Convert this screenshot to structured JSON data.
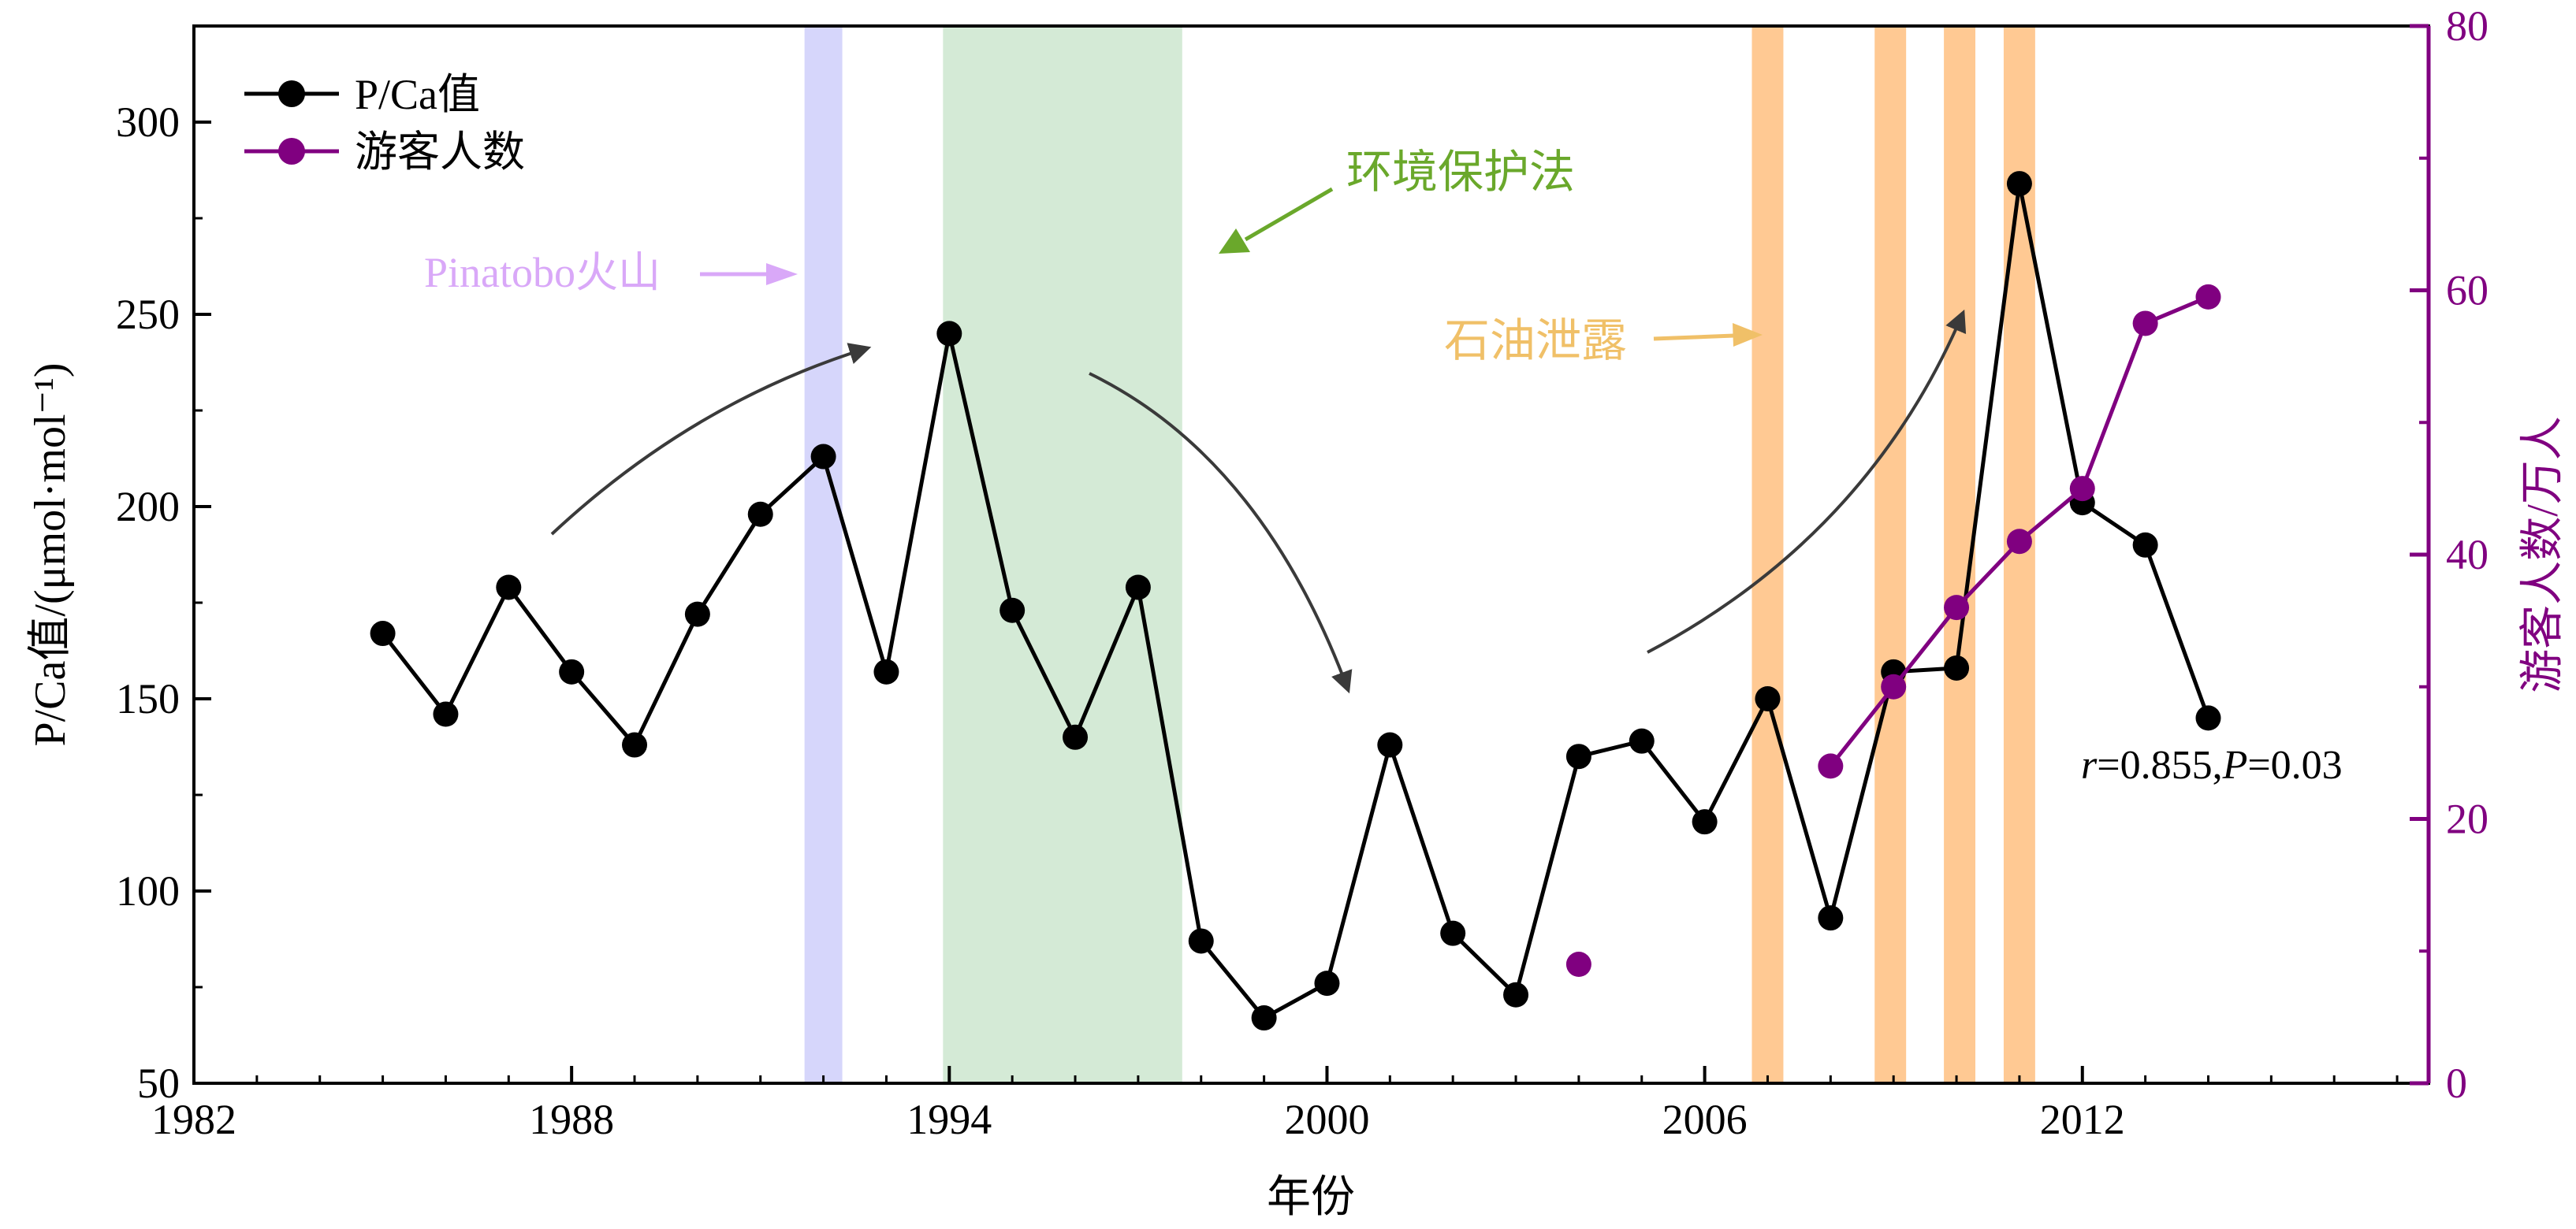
{
  "chart_data": {
    "type": "line",
    "x_axis": {
      "label": "年份",
      "range": [
        1982,
        2017.5
      ],
      "ticks": [
        1982,
        1988,
        1994,
        2000,
        2006,
        2012
      ]
    },
    "y_axis_left": {
      "label": "P/Ca值/(μmol·mol⁻¹)",
      "range": [
        50,
        325
      ],
      "ticks": [
        50,
        100,
        150,
        200,
        250,
        300
      ]
    },
    "y_axis_right": {
      "label": "游客人数/万人",
      "range": [
        0,
        80
      ],
      "ticks": [
        0,
        20,
        40,
        60,
        80
      ],
      "color": "#800080"
    },
    "series": [
      {
        "name": "P/Ca值",
        "axis": "left",
        "color": "#000000",
        "x": [
          1985,
          1986,
          1987,
          1988,
          1989,
          1990,
          1991,
          1992,
          1993,
          1994,
          1995,
          1996,
          1997,
          1998,
          1999,
          2000,
          2001,
          2002,
          2003,
          2004,
          2005,
          2006,
          2007,
          2008,
          2009,
          2010,
          2011,
          2012,
          2013,
          2014
        ],
        "y": [
          167,
          146,
          179,
          157,
          138,
          172,
          198,
          213,
          157,
          245,
          173,
          140,
          179,
          87,
          67,
          76,
          138,
          89,
          73,
          135,
          139,
          118,
          150,
          93,
          157,
          158,
          284,
          201,
          190,
          145
        ]
      },
      {
        "name": "游客人数",
        "axis": "right",
        "color": "#800080",
        "x": [
          2004,
          2008,
          2009,
          2010,
          2011,
          2012,
          2013,
          2014
        ],
        "y": [
          9,
          24,
          30,
          36,
          41,
          45,
          57.5,
          59.5
        ],
        "connect_from_index": 1
      }
    ],
    "shaded_periods": [
      {
        "start": 1991.7,
        "end": 1992.3,
        "color": "#d6d6fb"
      },
      {
        "start": 1993.9,
        "end": 1997.7,
        "color": "#d4ead6"
      },
      {
        "start": 2006.75,
        "end": 2007.25,
        "color": "#ffc993"
      },
      {
        "start": 2008.7,
        "end": 2009.2,
        "color": "#ffc993"
      },
      {
        "start": 2009.8,
        "end": 2010.3,
        "color": "#ffc993"
      },
      {
        "start": 2010.75,
        "end": 2011.25,
        "color": "#ffc993"
      }
    ],
    "annotations": {
      "pinatubo": {
        "text": "Pinatobo火山",
        "color": "#d9a8f8"
      },
      "env_law": {
        "text": "环境保护法",
        "color": "#6aa82b"
      },
      "oil_spill": {
        "text": "石油泄露",
        "color": "#f0c068"
      },
      "stats": {
        "r_label": "r",
        "r_value": "=0.855,",
        "p_label": "P",
        "p_value": "=0.03"
      }
    },
    "legend": {
      "placement": "top-left"
    },
    "grid": false
  }
}
